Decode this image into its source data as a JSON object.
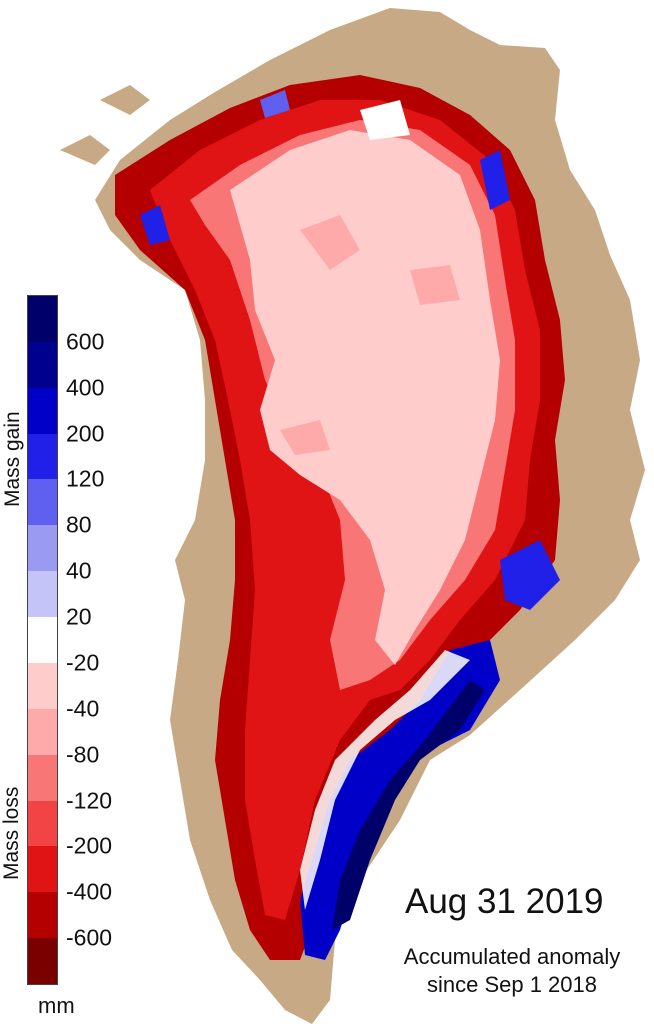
{
  "map": {
    "date": "Aug 31 2019",
    "caption_line1": "Accumulated anomaly",
    "caption_line2": "since Sep 1 2018",
    "land_color": "#c8a985",
    "icons": [
      "greenland-ice-sheet-map"
    ]
  },
  "legend": {
    "gain_label": "Mass gain",
    "loss_label": "Mass loss",
    "unit": "mm",
    "ticks": [
      "600",
      "400",
      "200",
      "120",
      "80",
      "40",
      "20",
      "-20",
      "-40",
      "-80",
      "-120",
      "-200",
      "-400",
      "-600"
    ],
    "colors": [
      "#00006a",
      "#00008f",
      "#0000c8",
      "#2020e8",
      "#6060f0",
      "#9a9af2",
      "#c4c4f8",
      "#ffffff",
      "#ffcccc",
      "#ffaaaa",
      "#f87676",
      "#f24444",
      "#e01414",
      "#b40000",
      "#7a0000"
    ]
  }
}
